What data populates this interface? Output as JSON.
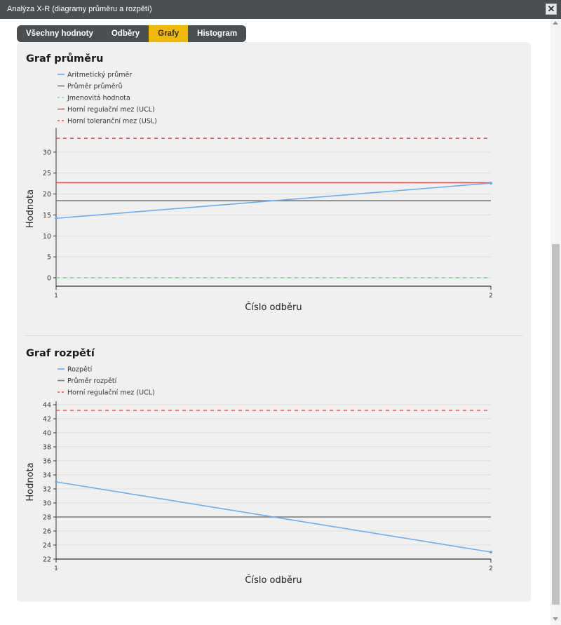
{
  "window": {
    "title": "Analýza X-R (diagramy průměru a rozpětí)",
    "close_label": "✕"
  },
  "tabs": [
    {
      "label": "Všechny hodnoty",
      "active": false
    },
    {
      "label": "Odběry",
      "active": false
    },
    {
      "label": "Grafy",
      "active": true
    },
    {
      "label": "Histogram",
      "active": false
    }
  ],
  "colors": {
    "accent": "#f3b800",
    "series": "#6aaef0",
    "mean": "#777777",
    "nominal": "#7fcf9b",
    "ucl": "#e05555",
    "usl": "#e05555"
  },
  "chart_data": [
    {
      "type": "line",
      "title": "Graf průměru",
      "xlabel": "Číslo odběru",
      "ylabel": "Hodnota",
      "x": [
        1,
        2
      ],
      "ylim": [
        -2,
        35
      ],
      "yticks": [
        0,
        5,
        10,
        15,
        20,
        25,
        30
      ],
      "grid": true,
      "legend_position": "top-left",
      "series": [
        {
          "name": "Aritmetický průměr",
          "values": [
            14.2,
            22.6
          ],
          "color": "#6aaef0",
          "style": "solid"
        },
        {
          "name": "Průměr průměrů",
          "values": [
            18.4,
            18.4
          ],
          "color": "#777777",
          "style": "solid"
        },
        {
          "name": "Jmenovitá hodnota",
          "values": [
            0,
            0
          ],
          "color": "#7fcf9b",
          "style": "dashed"
        },
        {
          "name": "Horní regulační mez (UCL)",
          "values": [
            22.7,
            22.7
          ],
          "color": "#e05555",
          "style": "solid"
        },
        {
          "name": "Horní toleranční mez (USL)",
          "values": [
            33.3,
            33.3
          ],
          "color": "#e05555",
          "style": "dashed"
        }
      ]
    },
    {
      "type": "line",
      "title": "Graf rozpětí",
      "xlabel": "Číslo odběru",
      "ylabel": "Hodnota",
      "x": [
        1,
        2
      ],
      "ylim": [
        22,
        44
      ],
      "yticks": [
        22,
        24,
        26,
        28,
        30,
        32,
        34,
        36,
        38,
        40,
        42,
        44
      ],
      "grid": true,
      "legend_position": "top-left",
      "series": [
        {
          "name": "Rozpětí",
          "values": [
            33,
            23
          ],
          "color": "#6aaef0",
          "style": "solid"
        },
        {
          "name": "Průměr rozpětí",
          "values": [
            28,
            28
          ],
          "color": "#777777",
          "style": "solid"
        },
        {
          "name": "Horní regulační mez (UCL)",
          "values": [
            43.2,
            43.2
          ],
          "color": "#e05555",
          "style": "dashed"
        }
      ]
    }
  ]
}
